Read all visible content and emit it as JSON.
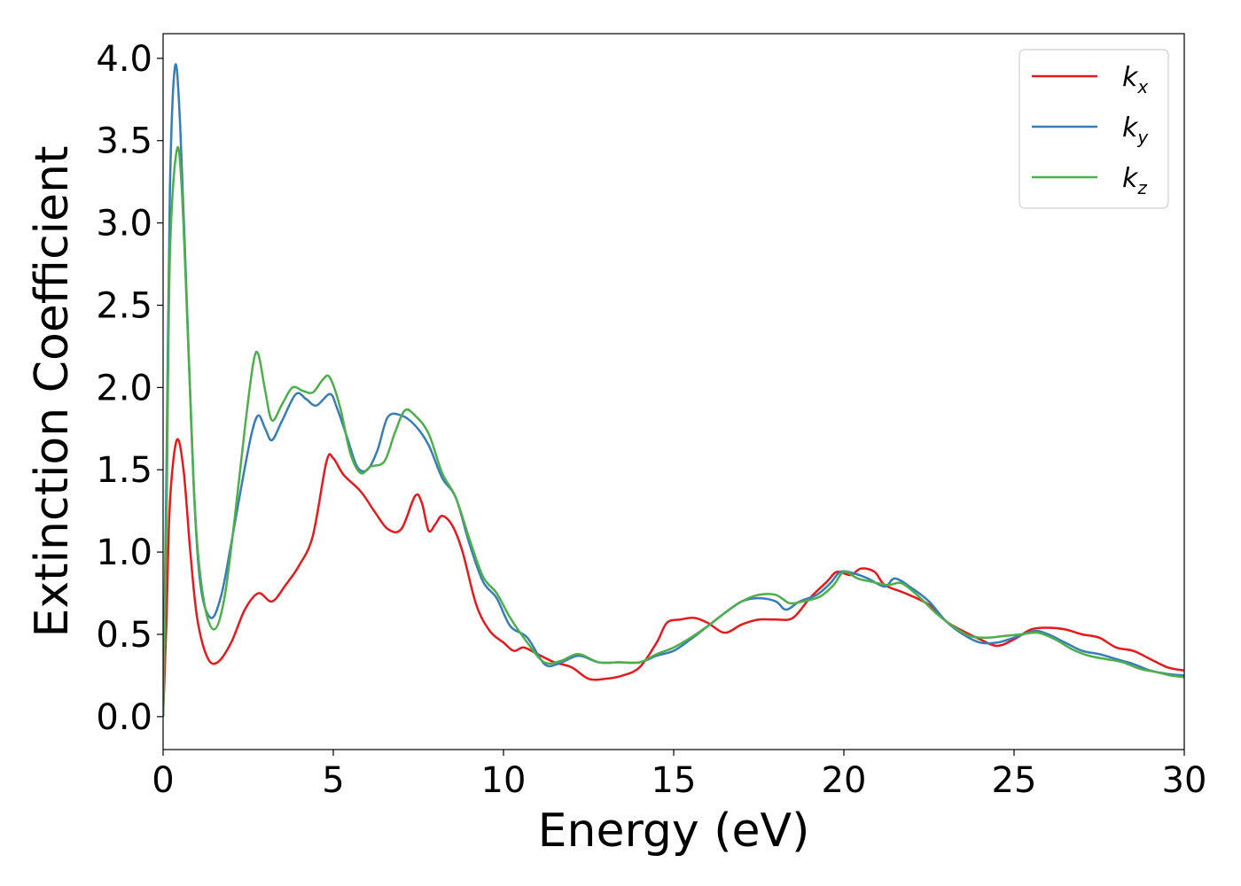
{
  "chart_data": {
    "type": "line",
    "title": "",
    "xlabel": "Energy (eV)",
    "ylabel": "Extinction Coefficient",
    "xlim": [
      0,
      30
    ],
    "ylim": [
      -0.2,
      4.15
    ],
    "xticks": [
      0,
      5,
      10,
      15,
      20,
      25,
      30
    ],
    "xtick_labels": [
      "0",
      "5",
      "10",
      "15",
      "20",
      "25",
      "30"
    ],
    "yticks": [
      0.0,
      0.5,
      1.0,
      1.5,
      2.0,
      2.5,
      3.0,
      3.5,
      4.0
    ],
    "ytick_labels": [
      "0.0",
      "0.5",
      "1.0",
      "1.5",
      "2.0",
      "2.5",
      "3.0",
      "3.5",
      "4.0"
    ],
    "grid": false,
    "legend_position": "top-right",
    "series": [
      {
        "name": "k_x",
        "label_main": "k",
        "label_sub": "x",
        "color": "#e41a1c",
        "points": [
          [
            0,
            0.0
          ],
          [
            0.1,
            0.6
          ],
          [
            0.2,
            1.3
          ],
          [
            0.4,
            1.68
          ],
          [
            0.6,
            1.5
          ],
          [
            0.8,
            1.0
          ],
          [
            1.0,
            0.6
          ],
          [
            1.3,
            0.36
          ],
          [
            1.6,
            0.33
          ],
          [
            2.0,
            0.45
          ],
          [
            2.4,
            0.65
          ],
          [
            2.8,
            0.75
          ],
          [
            3.2,
            0.7
          ],
          [
            3.6,
            0.8
          ],
          [
            4.0,
            0.92
          ],
          [
            4.4,
            1.1
          ],
          [
            4.8,
            1.55
          ],
          [
            5.0,
            1.57
          ],
          [
            5.3,
            1.47
          ],
          [
            5.8,
            1.37
          ],
          [
            6.2,
            1.25
          ],
          [
            6.6,
            1.14
          ],
          [
            7.0,
            1.14
          ],
          [
            7.4,
            1.34
          ],
          [
            7.6,
            1.3
          ],
          [
            7.8,
            1.13
          ],
          [
            8.0,
            1.17
          ],
          [
            8.2,
            1.22
          ],
          [
            8.5,
            1.16
          ],
          [
            8.8,
            1.0
          ],
          [
            9.2,
            0.68
          ],
          [
            9.6,
            0.52
          ],
          [
            10.0,
            0.45
          ],
          [
            10.3,
            0.4
          ],
          [
            10.6,
            0.42
          ],
          [
            11.0,
            0.38
          ],
          [
            11.5,
            0.33
          ],
          [
            12.0,
            0.3
          ],
          [
            12.5,
            0.23
          ],
          [
            13.0,
            0.23
          ],
          [
            13.5,
            0.25
          ],
          [
            14.0,
            0.3
          ],
          [
            14.5,
            0.45
          ],
          [
            14.8,
            0.57
          ],
          [
            15.2,
            0.59
          ],
          [
            15.6,
            0.6
          ],
          [
            16.0,
            0.57
          ],
          [
            16.5,
            0.51
          ],
          [
            17.0,
            0.56
          ],
          [
            17.5,
            0.59
          ],
          [
            18.0,
            0.59
          ],
          [
            18.5,
            0.6
          ],
          [
            19.0,
            0.72
          ],
          [
            19.5,
            0.82
          ],
          [
            19.8,
            0.88
          ],
          [
            20.2,
            0.86
          ],
          [
            20.5,
            0.9
          ],
          [
            20.9,
            0.88
          ],
          [
            21.2,
            0.8
          ],
          [
            21.8,
            0.75
          ],
          [
            22.5,
            0.68
          ],
          [
            23.0,
            0.58
          ],
          [
            23.5,
            0.52
          ],
          [
            24.0,
            0.47
          ],
          [
            24.5,
            0.43
          ],
          [
            25.0,
            0.47
          ],
          [
            25.5,
            0.53
          ],
          [
            26.0,
            0.54
          ],
          [
            26.5,
            0.53
          ],
          [
            27.0,
            0.5
          ],
          [
            27.5,
            0.48
          ],
          [
            28.0,
            0.42
          ],
          [
            28.5,
            0.4
          ],
          [
            29.0,
            0.35
          ],
          [
            29.5,
            0.3
          ],
          [
            30.0,
            0.28
          ]
        ]
      },
      {
        "name": "k_y",
        "label_main": "k",
        "label_sub": "y",
        "color": "#377eb8",
        "points": [
          [
            0,
            0.0
          ],
          [
            0.1,
            1.5
          ],
          [
            0.2,
            3.2
          ],
          [
            0.35,
            3.95
          ],
          [
            0.5,
            3.6
          ],
          [
            0.7,
            2.5
          ],
          [
            0.9,
            1.4
          ],
          [
            1.1,
            0.8
          ],
          [
            1.4,
            0.6
          ],
          [
            1.7,
            0.73
          ],
          [
            2.0,
            1.05
          ],
          [
            2.3,
            1.4
          ],
          [
            2.6,
            1.72
          ],
          [
            2.8,
            1.83
          ],
          [
            3.0,
            1.75
          ],
          [
            3.2,
            1.68
          ],
          [
            3.5,
            1.8
          ],
          [
            3.9,
            1.96
          ],
          [
            4.2,
            1.93
          ],
          [
            4.5,
            1.89
          ],
          [
            4.9,
            1.96
          ],
          [
            5.1,
            1.88
          ],
          [
            5.4,
            1.7
          ],
          [
            5.7,
            1.52
          ],
          [
            6.0,
            1.5
          ],
          [
            6.3,
            1.62
          ],
          [
            6.6,
            1.82
          ],
          [
            7.0,
            1.83
          ],
          [
            7.4,
            1.77
          ],
          [
            7.8,
            1.65
          ],
          [
            8.2,
            1.45
          ],
          [
            8.6,
            1.33
          ],
          [
            9.0,
            1.05
          ],
          [
            9.4,
            0.82
          ],
          [
            9.8,
            0.72
          ],
          [
            10.2,
            0.55
          ],
          [
            10.7,
            0.48
          ],
          [
            11.2,
            0.32
          ],
          [
            11.6,
            0.32
          ],
          [
            12.2,
            0.37
          ],
          [
            12.8,
            0.33
          ],
          [
            13.4,
            0.33
          ],
          [
            14.0,
            0.33
          ],
          [
            14.5,
            0.37
          ],
          [
            15.0,
            0.4
          ],
          [
            15.5,
            0.47
          ],
          [
            16.0,
            0.55
          ],
          [
            16.5,
            0.63
          ],
          [
            17.0,
            0.7
          ],
          [
            17.5,
            0.72
          ],
          [
            18.0,
            0.7
          ],
          [
            18.3,
            0.65
          ],
          [
            18.7,
            0.7
          ],
          [
            19.2,
            0.74
          ],
          [
            19.6,
            0.81
          ],
          [
            19.9,
            0.88
          ],
          [
            20.3,
            0.87
          ],
          [
            20.7,
            0.84
          ],
          [
            21.2,
            0.79
          ],
          [
            21.5,
            0.84
          ],
          [
            22.0,
            0.78
          ],
          [
            22.5,
            0.7
          ],
          [
            23.0,
            0.58
          ],
          [
            23.5,
            0.5
          ],
          [
            24.0,
            0.45
          ],
          [
            24.5,
            0.45
          ],
          [
            25.0,
            0.48
          ],
          [
            25.6,
            0.52
          ],
          [
            26.0,
            0.5
          ],
          [
            26.5,
            0.45
          ],
          [
            27.0,
            0.4
          ],
          [
            27.5,
            0.38
          ],
          [
            28.0,
            0.35
          ],
          [
            28.5,
            0.32
          ],
          [
            29.0,
            0.28
          ],
          [
            29.5,
            0.26
          ],
          [
            30.0,
            0.25
          ]
        ]
      },
      {
        "name": "k_z",
        "label_main": "k",
        "label_sub": "z",
        "color": "#4daf4a",
        "points": [
          [
            0,
            0.0
          ],
          [
            0.1,
            1.2
          ],
          [
            0.2,
            2.8
          ],
          [
            0.4,
            3.44
          ],
          [
            0.55,
            3.2
          ],
          [
            0.75,
            2.2
          ],
          [
            0.95,
            1.2
          ],
          [
            1.2,
            0.7
          ],
          [
            1.5,
            0.53
          ],
          [
            1.8,
            0.72
          ],
          [
            2.1,
            1.2
          ],
          [
            2.4,
            1.75
          ],
          [
            2.65,
            2.15
          ],
          [
            2.8,
            2.2
          ],
          [
            3.0,
            1.98
          ],
          [
            3.2,
            1.8
          ],
          [
            3.5,
            1.9
          ],
          [
            3.8,
            2.0
          ],
          [
            4.1,
            1.98
          ],
          [
            4.4,
            1.97
          ],
          [
            4.7,
            2.05
          ],
          [
            4.9,
            2.06
          ],
          [
            5.2,
            1.88
          ],
          [
            5.5,
            1.6
          ],
          [
            5.8,
            1.48
          ],
          [
            6.1,
            1.52
          ],
          [
            6.5,
            1.55
          ],
          [
            6.8,
            1.72
          ],
          [
            7.1,
            1.86
          ],
          [
            7.4,
            1.83
          ],
          [
            7.8,
            1.72
          ],
          [
            8.2,
            1.48
          ],
          [
            8.6,
            1.33
          ],
          [
            9.0,
            1.08
          ],
          [
            9.4,
            0.85
          ],
          [
            9.8,
            0.75
          ],
          [
            10.2,
            0.6
          ],
          [
            10.7,
            0.45
          ],
          [
            11.2,
            0.33
          ],
          [
            11.7,
            0.34
          ],
          [
            12.2,
            0.38
          ],
          [
            12.8,
            0.33
          ],
          [
            13.4,
            0.33
          ],
          [
            14.0,
            0.33
          ],
          [
            14.5,
            0.38
          ],
          [
            15.0,
            0.42
          ],
          [
            15.5,
            0.48
          ],
          [
            16.0,
            0.55
          ],
          [
            16.5,
            0.63
          ],
          [
            17.0,
            0.7
          ],
          [
            17.5,
            0.74
          ],
          [
            18.0,
            0.74
          ],
          [
            18.4,
            0.69
          ],
          [
            18.8,
            0.7
          ],
          [
            19.3,
            0.73
          ],
          [
            19.7,
            0.8
          ],
          [
            20.0,
            0.88
          ],
          [
            20.4,
            0.84
          ],
          [
            20.8,
            0.82
          ],
          [
            21.3,
            0.8
          ],
          [
            21.7,
            0.81
          ],
          [
            22.2,
            0.73
          ],
          [
            22.7,
            0.63
          ],
          [
            23.2,
            0.55
          ],
          [
            23.7,
            0.49
          ],
          [
            24.2,
            0.48
          ],
          [
            24.7,
            0.49
          ],
          [
            25.2,
            0.5
          ],
          [
            25.7,
            0.51
          ],
          [
            26.2,
            0.47
          ],
          [
            26.7,
            0.41
          ],
          [
            27.2,
            0.37
          ],
          [
            27.7,
            0.35
          ],
          [
            28.2,
            0.33
          ],
          [
            28.7,
            0.29
          ],
          [
            29.2,
            0.27
          ],
          [
            29.6,
            0.25
          ],
          [
            30.0,
            0.24
          ]
        ]
      }
    ]
  }
}
